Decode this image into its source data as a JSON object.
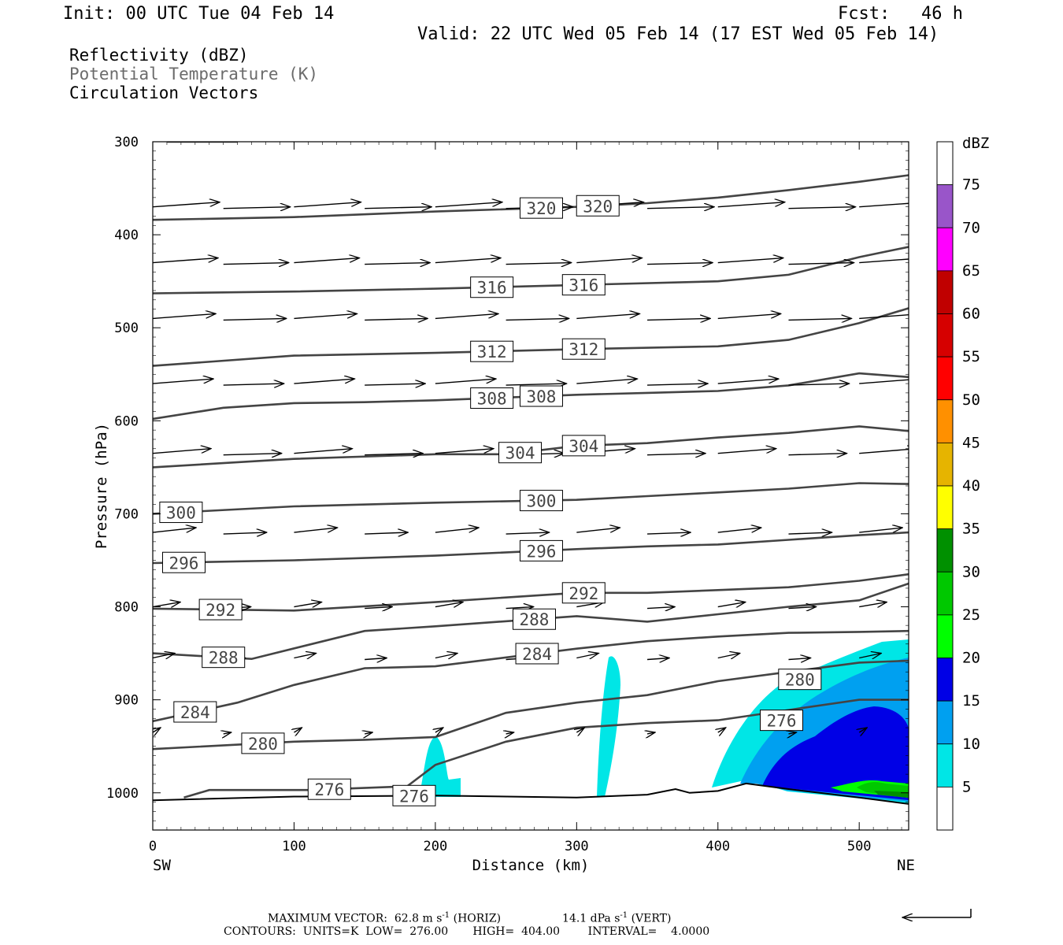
{
  "header": {
    "init": "Init: 00 UTC Tue 04 Feb 14",
    "fcst": "Fcst:   46 h",
    "valid": "Valid: 22 UTC Wed 05 Feb 14 (17 EST Wed 05 Feb 14)"
  },
  "fields": {
    "reflectivity": "Reflectivity (dBZ)",
    "theta": "Potential Temperature (K)",
    "vectors": "Circulation Vectors"
  },
  "footer": {
    "max_vector_a": "MAXIMUM VECTOR:  62.8 m s",
    "max_vector_b": " (HORIZ)",
    "max_vector_c": "14.1 dPa s",
    "max_vector_d": " (VERT)",
    "sup": "-1",
    "contours": "CONTOURS:  UNITS=K  LOW=  276.00       HIGH=  404.00        INTERVAL=    4.0000"
  },
  "chart_data": {
    "type": "cross-section",
    "xlabel": "Distance (km)",
    "ylabel": "Pressure (hPa)",
    "xlim": [
      0,
      535
    ],
    "ylim": [
      1040,
      300
    ],
    "x_ticks": [
      "0",
      "100",
      "200",
      "300",
      "400",
      "500"
    ],
    "y_ticks": [
      "300",
      "400",
      "500",
      "600",
      "700",
      "800",
      "900",
      "1000"
    ],
    "x_tick_values": [
      0,
      100,
      200,
      300,
      400,
      500
    ],
    "y_tick_values": [
      300,
      400,
      500,
      600,
      700,
      800,
      900,
      1000
    ],
    "left_end": "SW",
    "right_end": "NE",
    "colorbar": {
      "unit": "dBZ",
      "labels": [
        "5",
        "10",
        "15",
        "20",
        "25",
        "30",
        "35",
        "40",
        "45",
        "50",
        "55",
        "60",
        "65",
        "70",
        "75"
      ],
      "colors": [
        "#ffffff",
        "#00e6e6",
        "#00a0f0",
        "#0000e6",
        "#00ff00",
        "#00c800",
        "#009000",
        "#ffff00",
        "#e6b400",
        "#ff9000",
        "#ff0000",
        "#d60000",
        "#c00000",
        "#ff00ff",
        "#9955c9",
        "#ffffff"
      ]
    },
    "isentropes": [
      {
        "theta": 320,
        "points": [
          [
            0,
            384
          ],
          [
            100,
            381
          ],
          [
            200,
            375
          ],
          [
            300,
            370
          ],
          [
            350,
            366
          ],
          [
            400,
            360
          ],
          [
            450,
            352
          ],
          [
            500,
            343
          ],
          [
            535,
            336
          ]
        ]
      },
      {
        "theta": 316,
        "points": [
          [
            0,
            463
          ],
          [
            100,
            461
          ],
          [
            200,
            458
          ],
          [
            300,
            454
          ],
          [
            400,
            450
          ],
          [
            450,
            443
          ],
          [
            500,
            424
          ],
          [
            535,
            413
          ]
        ]
      },
      {
        "theta": 312,
        "points": [
          [
            0,
            541
          ],
          [
            100,
            530
          ],
          [
            200,
            527
          ],
          [
            300,
            523
          ],
          [
            400,
            520
          ],
          [
            450,
            513
          ],
          [
            500,
            495
          ],
          [
            535,
            479
          ]
        ]
      },
      {
        "theta": 308,
        "points": [
          [
            0,
            598
          ],
          [
            50,
            586
          ],
          [
            100,
            581
          ],
          [
            150,
            580
          ],
          [
            200,
            578
          ],
          [
            250,
            575
          ],
          [
            300,
            572
          ],
          [
            350,
            570
          ],
          [
            400,
            568
          ],
          [
            450,
            562
          ],
          [
            500,
            549
          ],
          [
            535,
            553
          ]
        ]
      },
      {
        "theta": 304,
        "points": [
          [
            0,
            650
          ],
          [
            100,
            641
          ],
          [
            200,
            636
          ],
          [
            250,
            636
          ],
          [
            300,
            627
          ],
          [
            350,
            624
          ],
          [
            400,
            618
          ],
          [
            450,
            613
          ],
          [
            500,
            606
          ],
          [
            535,
            611
          ]
        ]
      },
      {
        "theta": 300,
        "points": [
          [
            0,
            700
          ],
          [
            100,
            692
          ],
          [
            200,
            688
          ],
          [
            300,
            685
          ],
          [
            350,
            681
          ],
          [
            400,
            677
          ],
          [
            450,
            673
          ],
          [
            500,
            667
          ],
          [
            535,
            668
          ]
        ]
      },
      {
        "theta": 296,
        "points": [
          [
            0,
            753
          ],
          [
            100,
            750
          ],
          [
            200,
            745
          ],
          [
            300,
            738
          ],
          [
            350,
            735
          ],
          [
            400,
            733
          ],
          [
            450,
            728
          ],
          [
            500,
            723
          ],
          [
            535,
            720
          ]
        ]
      },
      {
        "theta": 292,
        "points": [
          [
            0,
            802
          ],
          [
            100,
            804
          ],
          [
            200,
            795
          ],
          [
            300,
            785
          ],
          [
            350,
            785
          ],
          [
            400,
            782
          ],
          [
            450,
            779
          ],
          [
            500,
            772
          ],
          [
            535,
            765
          ]
        ]
      },
      {
        "theta": 288,
        "points": [
          [
            0,
            850
          ],
          [
            70,
            856
          ],
          [
            150,
            826
          ],
          [
            200,
            821
          ],
          [
            300,
            810
          ],
          [
            350,
            816
          ],
          [
            400,
            808
          ],
          [
            450,
            800
          ],
          [
            500,
            793
          ],
          [
            535,
            775
          ]
        ]
      },
      {
        "theta": 284,
        "points": [
          [
            0,
            923
          ],
          [
            60,
            903
          ],
          [
            100,
            884
          ],
          [
            150,
            866
          ],
          [
            200,
            864
          ],
          [
            300,
            845
          ],
          [
            350,
            837
          ],
          [
            400,
            832
          ],
          [
            450,
            828
          ],
          [
            500,
            827
          ],
          [
            535,
            826
          ]
        ]
      },
      {
        "theta": 280,
        "points": [
          [
            0,
            953
          ],
          [
            100,
            945
          ],
          [
            150,
            943
          ],
          [
            200,
            940
          ],
          [
            250,
            914
          ],
          [
            300,
            903
          ],
          [
            350,
            895
          ],
          [
            400,
            880
          ],
          [
            450,
            870
          ],
          [
            500,
            860
          ],
          [
            535,
            858
          ]
        ]
      },
      {
        "theta": 276,
        "points": [
          [
            22,
            1005
          ],
          [
            40,
            997
          ],
          [
            110,
            997
          ],
          [
            180,
            993
          ],
          [
            200,
            970
          ],
          [
            250,
            945
          ],
          [
            300,
            930
          ],
          [
            350,
            925
          ],
          [
            400,
            922
          ],
          [
            450,
            911
          ],
          [
            500,
            900
          ],
          [
            535,
            900
          ]
        ]
      }
    ],
    "terrain": [
      [
        0,
        1008
      ],
      [
        100,
        1004
      ],
      [
        200,
        1003
      ],
      [
        300,
        1005
      ],
      [
        350,
        1002
      ],
      [
        370,
        996
      ],
      [
        380,
        1000
      ],
      [
        400,
        998
      ],
      [
        420,
        990
      ],
      [
        450,
        996
      ],
      [
        500,
        1005
      ],
      [
        535,
        1012
      ]
    ]
  }
}
